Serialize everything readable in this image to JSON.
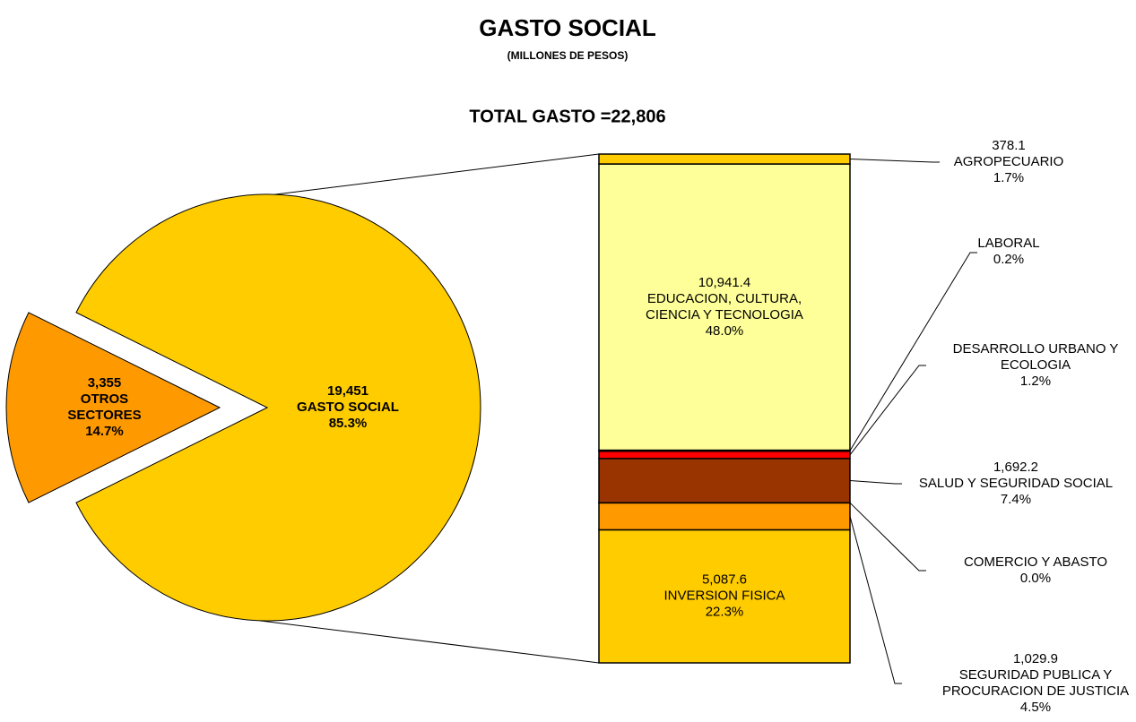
{
  "chart_data": {
    "type": "bar-of-pie",
    "title": "GASTO SOCIAL",
    "subtitle": "(MILLONES DE PESOS)",
    "annotation": "TOTAL GASTO =22,806",
    "pie": {
      "names": [
        [
          "OTROS",
          "SECTORES"
        ],
        [
          "GASTO SOCIAL"
        ]
      ],
      "values": [
        3355,
        19451
      ],
      "value_labels": [
        "3,355",
        "19,451"
      ],
      "percents": [
        14.7,
        85.3
      ],
      "percent_labels": [
        "14.7%",
        "85.3%"
      ],
      "colors": [
        "#FF9900",
        "#FFCC00"
      ],
      "exploded": [
        true,
        false
      ]
    },
    "bar": {
      "segments": [
        {
          "name": [
            "INVERSION FISICA"
          ],
          "value": 5087.6,
          "value_label": "5,087.6",
          "percent": 22.3,
          "percent_label": "22.3%",
          "color": "#FFCC00",
          "label": "inside"
        },
        {
          "name": [
            "SEGURIDAD PUBLICA Y",
            "PROCURACION DE JUSTICIA"
          ],
          "value": 1029.9,
          "value_label": "1,029.9",
          "percent": 4.5,
          "percent_label": "4.5%",
          "color": "#FF9900",
          "label": "outside"
        },
        {
          "name": [
            "COMERCIO Y ABASTO"
          ],
          "value": 3.6,
          "percent": 0.0,
          "percent_label": "0.0%",
          "color": "#FF6600",
          "label": "outside"
        },
        {
          "name": [
            "SALUD Y SEGURIDAD SOCIAL"
          ],
          "value": 1692.2,
          "value_label": "1,692.2",
          "percent": 7.4,
          "percent_label": "7.4%",
          "color": "#993300",
          "label": "outside"
        },
        {
          "name": [
            "DESARROLLO URBANO Y",
            "ECOLOGIA"
          ],
          "value": 278.8,
          "percent": 1.2,
          "percent_label": "1.2%",
          "color": "#FF0000",
          "label": "outside"
        },
        {
          "name": [
            "LABORAL"
          ],
          "value": 39.8,
          "percent": 0.2,
          "percent_label": "0.2%",
          "color": "#CC0000",
          "label": "outside"
        },
        {
          "name": [
            "EDUCACION, CULTURA,",
            "CIENCIA Y TECNOLOGIA"
          ],
          "value": 10941.4,
          "value_label": "10,941.4",
          "percent": 48.0,
          "percent_label": "48.0%",
          "color": "#FFFF99",
          "label": "inside"
        },
        {
          "name": [
            "AGROPECUARIO"
          ],
          "value": 378.1,
          "value_label": "378.1",
          "percent": 1.7,
          "percent_label": "1.7%",
          "color": "#FFCC00",
          "label": "outside"
        }
      ]
    }
  }
}
